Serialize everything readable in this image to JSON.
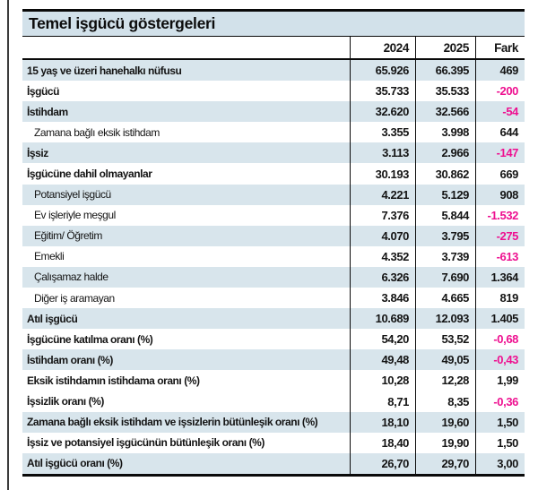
{
  "colors": {
    "stripe": "#d8e5ec",
    "title_bg": "#d2e1ea",
    "negative": "#ee1090",
    "text": "#141414",
    "border": "#0a0a0a"
  },
  "table": {
    "title": "Temel işgücü göstergeleri",
    "columns": [
      "2024",
      "2025",
      "Fark"
    ],
    "rows": [
      {
        "label": "15 yaş ve üzeri hanehalkı nüfusu",
        "indent": false,
        "shaded": true,
        "v2024": "65.926",
        "v2025": "66.395",
        "fark": "469",
        "negative": false
      },
      {
        "label": "İşgücü",
        "indent": false,
        "shaded": false,
        "v2024": "35.733",
        "v2025": "35.533",
        "fark": "-200",
        "negative": true
      },
      {
        "label": "İstihdam",
        "indent": false,
        "shaded": true,
        "v2024": "32.620",
        "v2025": "32.566",
        "fark": "-54",
        "negative": true
      },
      {
        "label": "Zamana bağlı eksik istihdam",
        "indent": true,
        "shaded": false,
        "v2024": "3.355",
        "v2025": "3.998",
        "fark": "644",
        "negative": false
      },
      {
        "label": "İşsiz",
        "indent": false,
        "shaded": true,
        "v2024": "3.113",
        "v2025": "2.966",
        "fark": "-147",
        "negative": true
      },
      {
        "label": "İşgücüne dahil olmayanlar",
        "indent": false,
        "shaded": false,
        "v2024": "30.193",
        "v2025": "30.862",
        "fark": "669",
        "negative": false
      },
      {
        "label": "Potansiyel işgücü",
        "indent": true,
        "shaded": true,
        "v2024": "4.221",
        "v2025": "5.129",
        "fark": "908",
        "negative": false
      },
      {
        "label": "Ev işleriyle meşgul",
        "indent": true,
        "shaded": false,
        "v2024": "7.376",
        "v2025": "5.844",
        "fark": "-1.532",
        "negative": true
      },
      {
        "label": "Eğitim/ Öğretim",
        "indent": true,
        "shaded": true,
        "v2024": "4.070",
        "v2025": "3.795",
        "fark": "-275",
        "negative": true
      },
      {
        "label": "Emekli",
        "indent": true,
        "shaded": false,
        "v2024": "4.352",
        "v2025": "3.739",
        "fark": "-613",
        "negative": true
      },
      {
        "label": "Çalışamaz halde",
        "indent": true,
        "shaded": true,
        "v2024": "6.326",
        "v2025": "7.690",
        "fark": "1.364",
        "negative": false
      },
      {
        "label": "Diğer iş aramayan",
        "indent": true,
        "shaded": false,
        "v2024": "3.846",
        "v2025": "4.665",
        "fark": "819",
        "negative": false
      },
      {
        "label": "Atıl işgücü",
        "indent": false,
        "shaded": true,
        "v2024": "10.689",
        "v2025": "12.093",
        "fark": "1.405",
        "negative": false
      },
      {
        "label": "İşgücüne katılma oranı (%)",
        "indent": false,
        "shaded": false,
        "v2024": "54,20",
        "v2025": "53,52",
        "fark": "-0,68",
        "negative": true
      },
      {
        "label": "İstihdam oranı (%)",
        "indent": false,
        "shaded": true,
        "v2024": "49,48",
        "v2025": "49,05",
        "fark": "-0,43",
        "negative": true
      },
      {
        "label": "Eksik istihdamın istihdama oranı (%)",
        "indent": false,
        "shaded": false,
        "v2024": "10,28",
        "v2025": "12,28",
        "fark": "1,99",
        "negative": false
      },
      {
        "label": "İşsizlik oranı (%)",
        "indent": false,
        "shaded": false,
        "v2024": "8,71",
        "v2025": "8,35",
        "fark": "-0,36",
        "negative": true
      },
      {
        "label": "Zamana bağlı eksik istihdam ve işsizlerin bütünleşik oranı (%)",
        "indent": false,
        "shaded": true,
        "v2024": "18,10",
        "v2025": "19,60",
        "fark": "1,50",
        "negative": false
      },
      {
        "label": "İşsiz ve potansiyel işgücünün bütünleşik oranı (%)",
        "indent": false,
        "shaded": false,
        "v2024": "18,40",
        "v2025": "19,90",
        "fark": "1,50",
        "negative": false
      },
      {
        "label": "Atıl işgücü oranı (%)",
        "indent": false,
        "shaded": true,
        "v2024": "26,70",
        "v2025": "29,70",
        "fark": "3,00",
        "negative": false
      }
    ]
  },
  "chart_data": {
    "type": "table",
    "title": "Temel işgücü göstergeleri",
    "columns": [
      "2024",
      "2025",
      "Fark"
    ],
    "rows": [
      [
        "15 yaş ve üzeri hanehalkı nüfusu",
        65926,
        66395,
        469
      ],
      [
        "İşgücü",
        35733,
        35533,
        -200
      ],
      [
        "İstihdam",
        32620,
        32566,
        -54
      ],
      [
        "Zamana bağlı eksik istihdam",
        3355,
        3998,
        644
      ],
      [
        "İşsiz",
        3113,
        2966,
        -147
      ],
      [
        "İşgücüne dahil olmayanlar",
        30193,
        30862,
        669
      ],
      [
        "Potansiyel işgücü",
        4221,
        5129,
        908
      ],
      [
        "Ev işleriyle meşgul",
        7376,
        5844,
        -1532
      ],
      [
        "Eğitim/ Öğretim",
        4070,
        3795,
        -275
      ],
      [
        "Emekli",
        4352,
        3739,
        -613
      ],
      [
        "Çalışamaz halde",
        6326,
        7690,
        1364
      ],
      [
        "Diğer iş aramayan",
        3846,
        4665,
        819
      ],
      [
        "Atıl işgücü",
        10689,
        12093,
        1405
      ],
      [
        "İşgücüne katılma oranı (%)",
        54.2,
        53.52,
        -0.68
      ],
      [
        "İstihdam oranı (%)",
        49.48,
        49.05,
        -0.43
      ],
      [
        "Eksik istihdamın istihdama oranı (%)",
        10.28,
        12.28,
        1.99
      ],
      [
        "İşsizlik oranı (%)",
        8.71,
        8.35,
        -0.36
      ],
      [
        "Zamana bağlı eksik istihdam ve işsizlerin bütünleşik oranı (%)",
        18.1,
        19.6,
        1.5
      ],
      [
        "İşsiz ve potansiyel işgücünün bütünleşik oranı (%)",
        18.4,
        19.9,
        1.5
      ],
      [
        "Atıl işgücü oranı (%)",
        26.7,
        29.7,
        3.0
      ]
    ]
  }
}
